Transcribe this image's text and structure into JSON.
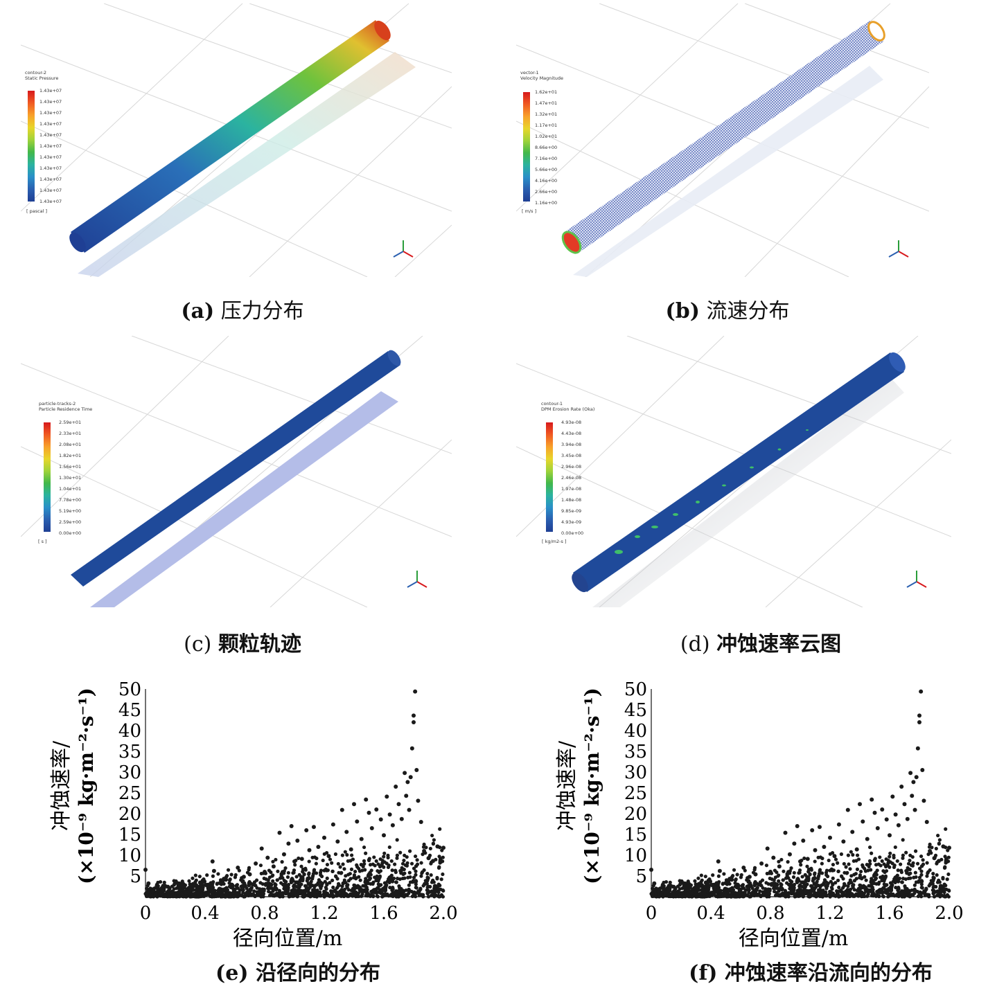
{
  "panels": {
    "a": {
      "caption_tag": "(a)",
      "caption_text": "压力分布",
      "legend_title_1": "contour-2",
      "legend_title_2": "Static Pressure",
      "legend_ticks": [
        "1.43e+07",
        "1.43e+07",
        "1.43e+07",
        "1.43e+07",
        "1.43e+07",
        "1.43e+07",
        "1.43e+07",
        "1.43e+07",
        "1.43e+07",
        "1.43e+07",
        "1.43e+07"
      ],
      "legend_unit": "[ pascal ]"
    },
    "b": {
      "caption_tag": "(b)",
      "caption_text": "流速分布",
      "legend_title_1": "vector-1",
      "legend_title_2": "Velocity Magnitude",
      "legend_ticks": [
        "1.62e+01",
        "1.47e+01",
        "1.32e+01",
        "1.17e+01",
        "1.02e+01",
        "8.66e+00",
        "7.16e+00",
        "5.66e+00",
        "4.16e+00",
        "2.66e+00",
        "1.16e+00"
      ],
      "legend_unit": "[ m/s ]"
    },
    "c": {
      "caption_tag": "(c)",
      "caption_text": "颗粒轨迹",
      "legend_title_1": "particle-tracks-2",
      "legend_title_2": "Particle Residence Time",
      "legend_ticks": [
        "2.59e+01",
        "2.33e+01",
        "2.08e+01",
        "1.82e+01",
        "1.56e+01",
        "1.30e+01",
        "1.04e+01",
        "7.78e+00",
        "5.19e+00",
        "2.59e+00",
        "0.00e+00"
      ],
      "legend_unit": "[ s ]"
    },
    "d": {
      "caption_tag": "(d)",
      "caption_text": "冲蚀速率云图",
      "legend_title_1": "contour-1",
      "legend_title_2": "DPM Erosion Rate (Oka)",
      "legend_ticks": [
        "4.93e-08",
        "4.43e-08",
        "3.94e-08",
        "3.45e-08",
        "2.96e-08",
        "2.46e-08",
        "1.97e-08",
        "1.48e-08",
        "9.85e-09",
        "4.93e-09",
        "0.00e+00"
      ],
      "legend_unit": "[ kg/m2-s ]"
    },
    "e": {
      "caption_tag": "(e)",
      "caption_text": "沿径向的分布"
    },
    "f": {
      "caption_tag": "(f)",
      "caption_text": "冲蚀速率沿流向的分布"
    }
  },
  "colors": {
    "spectrum": [
      "#d7191c",
      "#f05a22",
      "#f8a12a",
      "#e8d62a",
      "#9fd33a",
      "#42b84a",
      "#2bb3a0",
      "#2a8fc8",
      "#2a5fb0",
      "#1f3f94"
    ],
    "tube_blue": "#1f4a9a",
    "marker": "#1a1a1a"
  },
  "chart_data": [
    {
      "type": "scatter",
      "xlabel": "径向位置/m",
      "ylabel_line1": "冲蚀速率/",
      "ylabel_line2": "(×10⁻⁹ kg·m⁻²·s⁻¹)",
      "xlim": [
        0,
        2.0
      ],
      "ylim": [
        0,
        50
      ],
      "x_ticks": [
        "0",
        "0.4",
        "0.8",
        "1.2",
        "1.6",
        "2.0"
      ],
      "x_tick_values": [
        0,
        0.4,
        0.8,
        1.2,
        1.6,
        2.0
      ],
      "y_ticks": [
        "5",
        "10",
        "15",
        "20",
        "25",
        "30",
        "35",
        "40",
        "45",
        "50"
      ],
      "y_tick_values": [
        5,
        10,
        15,
        20,
        25,
        30,
        35,
        40,
        45,
        50
      ],
      "points": [
        [
          0,
          6.5
        ],
        [
          0.02,
          3.2
        ],
        [
          0.05,
          1.8
        ],
        [
          0.08,
          2.1
        ],
        [
          0.12,
          1.5
        ],
        [
          0.15,
          2.4
        ],
        [
          0.18,
          1.2
        ],
        [
          0.22,
          3.0
        ],
        [
          0.26,
          2.2
        ],
        [
          0.3,
          1.9
        ],
        [
          0.34,
          2.8
        ],
        [
          0.38,
          3.5
        ],
        [
          0.42,
          2.4
        ],
        [
          0.45,
          8.5
        ],
        [
          0.46,
          6.2
        ],
        [
          0.5,
          3.3
        ],
        [
          0.54,
          4.1
        ],
        [
          0.58,
          2.9
        ],
        [
          0.62,
          7.0
        ],
        [
          0.66,
          4.8
        ],
        [
          0.7,
          5.4
        ],
        [
          0.74,
          8.0
        ],
        [
          0.78,
          11.6
        ],
        [
          0.8,
          6.0
        ],
        [
          0.82,
          9.4
        ],
        [
          0.86,
          7.3
        ],
        [
          0.9,
          15.4
        ],
        [
          0.93,
          10.2
        ],
        [
          0.96,
          12.8
        ],
        [
          0.98,
          17.0
        ],
        [
          1.0,
          8.5
        ],
        [
          1.02,
          13.5
        ],
        [
          1.05,
          9.1
        ],
        [
          1.08,
          16.0
        ],
        [
          1.1,
          11.2
        ],
        [
          1.13,
          16.8
        ],
        [
          1.16,
          12.0
        ],
        [
          1.2,
          14.2
        ],
        [
          1.23,
          9.8
        ],
        [
          1.26,
          17.4
        ],
        [
          1.29,
          13.3
        ],
        [
          1.32,
          20.9
        ],
        [
          1.35,
          15.6
        ],
        [
          1.38,
          11.4
        ],
        [
          1.4,
          22.3
        ],
        [
          1.42,
          18.1
        ],
        [
          1.45,
          13.9
        ],
        [
          1.48,
          23.4
        ],
        [
          1.5,
          20.2
        ],
        [
          1.52,
          16.5
        ],
        [
          1.55,
          21.0
        ],
        [
          1.58,
          18.6
        ],
        [
          1.6,
          14.8
        ],
        [
          1.62,
          24.1
        ],
        [
          1.64,
          19.8
        ],
        [
          1.66,
          17.2
        ],
        [
          1.68,
          26.5
        ],
        [
          1.7,
          22.3
        ],
        [
          1.72,
          18.7
        ],
        [
          1.74,
          29.8
        ],
        [
          1.75,
          24.3
        ],
        [
          1.76,
          27.6
        ],
        [
          1.77,
          20.9
        ],
        [
          1.78,
          28.8
        ],
        [
          1.79,
          35.7
        ],
        [
          1.8,
          42.0
        ],
        [
          1.8,
          43.6
        ],
        [
          1.81,
          49.4
        ],
        [
          1.82,
          30.5
        ],
        [
          1.83,
          23.1
        ],
        [
          1.85,
          18.0
        ],
        [
          1.87,
          11.0
        ],
        [
          1.9,
          9.3
        ],
        [
          1.93,
          8.6
        ],
        [
          1.96,
          12.1
        ],
        [
          1.98,
          8.8
        ],
        [
          2.0,
          11.8
        ]
      ]
    },
    {
      "type": "scatter",
      "xlabel": "径向位置/m",
      "ylabel_line1": "冲蚀速率/",
      "ylabel_line2": "(×10⁻⁹ kg·m⁻²·s⁻¹)",
      "xlim": [
        0,
        2.0
      ],
      "ylim": [
        0,
        50
      ],
      "x_ticks": [
        "0",
        "0.4",
        "0.8",
        "1.2",
        "1.6",
        "2.0"
      ],
      "x_tick_values": [
        0,
        0.4,
        0.8,
        1.2,
        1.6,
        2.0
      ],
      "y_ticks": [
        "5",
        "10",
        "15",
        "20",
        "25",
        "30",
        "35",
        "40",
        "45",
        "50"
      ],
      "y_tick_values": [
        5,
        10,
        15,
        20,
        25,
        30,
        35,
        40,
        45,
        50
      ],
      "points": [
        [
          0,
          6.5
        ],
        [
          0.02,
          3.2
        ],
        [
          0.05,
          1.8
        ],
        [
          0.08,
          2.1
        ],
        [
          0.12,
          1.5
        ],
        [
          0.15,
          2.4
        ],
        [
          0.18,
          1.2
        ],
        [
          0.22,
          3.0
        ],
        [
          0.26,
          2.2
        ],
        [
          0.3,
          1.9
        ],
        [
          0.34,
          2.8
        ],
        [
          0.38,
          3.5
        ],
        [
          0.42,
          2.4
        ],
        [
          0.45,
          8.5
        ],
        [
          0.46,
          6.2
        ],
        [
          0.5,
          3.3
        ],
        [
          0.54,
          4.1
        ],
        [
          0.58,
          2.9
        ],
        [
          0.62,
          7.0
        ],
        [
          0.66,
          4.8
        ],
        [
          0.7,
          5.4
        ],
        [
          0.74,
          8.0
        ],
        [
          0.78,
          11.6
        ],
        [
          0.8,
          6.0
        ],
        [
          0.82,
          9.4
        ],
        [
          0.86,
          7.3
        ],
        [
          0.9,
          15.4
        ],
        [
          0.93,
          10.2
        ],
        [
          0.96,
          12.8
        ],
        [
          0.98,
          17.0
        ],
        [
          1.0,
          8.5
        ],
        [
          1.02,
          13.5
        ],
        [
          1.05,
          9.1
        ],
        [
          1.08,
          16.0
        ],
        [
          1.1,
          11.2
        ],
        [
          1.13,
          16.8
        ],
        [
          1.16,
          12.0
        ],
        [
          1.2,
          14.2
        ],
        [
          1.23,
          9.8
        ],
        [
          1.26,
          17.4
        ],
        [
          1.29,
          13.3
        ],
        [
          1.32,
          20.9
        ],
        [
          1.35,
          15.6
        ],
        [
          1.38,
          11.4
        ],
        [
          1.4,
          22.3
        ],
        [
          1.42,
          18.1
        ],
        [
          1.45,
          13.9
        ],
        [
          1.48,
          23.4
        ],
        [
          1.5,
          20.2
        ],
        [
          1.52,
          16.5
        ],
        [
          1.55,
          21.0
        ],
        [
          1.58,
          18.6
        ],
        [
          1.6,
          14.8
        ],
        [
          1.62,
          24.1
        ],
        [
          1.64,
          19.8
        ],
        [
          1.66,
          17.2
        ],
        [
          1.68,
          26.5
        ],
        [
          1.7,
          22.3
        ],
        [
          1.72,
          18.7
        ],
        [
          1.74,
          29.8
        ],
        [
          1.75,
          24.3
        ],
        [
          1.76,
          27.6
        ],
        [
          1.77,
          20.9
        ],
        [
          1.78,
          28.8
        ],
        [
          1.79,
          35.7
        ],
        [
          1.8,
          42.0
        ],
        [
          1.8,
          43.6
        ],
        [
          1.81,
          49.4
        ],
        [
          1.82,
          30.5
        ],
        [
          1.83,
          23.1
        ],
        [
          1.85,
          18.0
        ],
        [
          1.87,
          11.0
        ],
        [
          1.9,
          9.3
        ],
        [
          1.93,
          8.6
        ],
        [
          1.96,
          12.1
        ],
        [
          1.98,
          8.8
        ],
        [
          2.0,
          11.8
        ]
      ]
    }
  ]
}
